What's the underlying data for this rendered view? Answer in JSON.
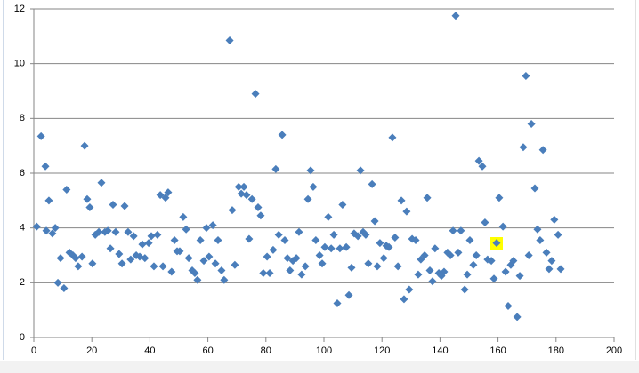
{
  "chart_data": {
    "type": "scatter",
    "color": "#4a7ebb",
    "grid": true,
    "xlim": [
      0,
      200
    ],
    "ylim": [
      0,
      12
    ],
    "xticks": [
      0,
      20,
      40,
      60,
      80,
      100,
      120,
      140,
      160,
      180,
      200
    ],
    "yticks": [
      0,
      2,
      4,
      6,
      8,
      10,
      12
    ],
    "x": [
      1,
      2.5,
      4,
      4.3,
      5.2,
      6.4,
      7.4,
      8.3,
      9.2,
      10.4,
      11.3,
      12.3,
      13.5,
      14.4,
      15.3,
      16.6,
      17.5,
      18.4,
      19.3,
      20.2,
      21.2,
      22.4,
      23.3,
      24.5,
      25.5,
      26.4,
      27.3,
      28.2,
      29.4,
      30.4,
      31.3,
      32.5,
      33.4,
      34.4,
      35.3,
      36.5,
      37.4,
      38.3,
      39.6,
      40.5,
      41.4,
      42.6,
      43.6,
      44.5,
      45.4,
      46.3,
      47.5,
      48.5,
      49.4,
      50.3,
      51.5,
      52.5,
      53.4,
      54.6,
      55.5,
      56.4,
      57.4,
      58.6,
      59.5,
      60.4,
      61.7,
      62.6,
      63.5,
      64.7,
      65.6,
      67.5,
      68.4,
      69.3,
      70.6,
      71.5,
      72.4,
      73.3,
      74.2,
      75.2,
      76.4,
      77.3,
      78.2,
      79.1,
      80.4,
      81.3,
      82.5,
      83.4,
      84.4,
      85.6,
      86.5,
      87.4,
      88.3,
      89.3,
      90.5,
      91.4,
      92.3,
      93.6,
      94.5,
      95.4,
      96.3,
      97.2,
      98.5,
      99.4,
      100.3,
      101.5,
      102.5,
      103.4,
      104.6,
      105.5,
      106.4,
      107.7,
      108.6,
      109.5,
      110.4,
      111.7,
      112.6,
      113.5,
      114.4,
      115.3,
      116.6,
      117.5,
      118.4,
      119.3,
      120.6,
      121.5,
      122.4,
      123.6,
      124.5,
      125.5,
      126.7,
      127.6,
      128.5,
      129.4,
      130.4,
      131.6,
      132.5,
      133.4,
      134.7,
      135.6,
      136.5,
      137.4,
      138.3,
      139.6,
      140.5,
      141.4,
      142.6,
      143.6,
      144.5,
      145.4,
      146.3,
      147.2,
      148.5,
      149.4,
      150.3,
      151.5,
      152.5,
      153.4,
      154.6,
      155.5,
      156.4,
      157.7,
      158.6,
      159.5,
      160.4,
      161.7,
      162.6,
      163.5,
      164.4,
      165.3,
      166.6,
      167.5,
      168.7,
      169.6,
      170.6,
      171.5,
      172.7,
      173.6,
      174.5,
      175.5,
      176.7,
      177.6,
      178.5,
      179.4,
      180.7,
      181.6
    ],
    "values": [
      4.05,
      7.35,
      6.25,
      3.9,
      5.0,
      3.8,
      4.0,
      2.0,
      2.9,
      1.8,
      5.4,
      3.1,
      3.0,
      2.9,
      2.6,
      2.95,
      7.0,
      5.05,
      4.75,
      2.7,
      3.75,
      3.85,
      5.65,
      3.85,
      3.9,
      3.25,
      4.85,
      3.85,
      3.05,
      2.7,
      4.8,
      3.85,
      2.85,
      3.7,
      3.0,
      2.95,
      3.4,
      2.9,
      3.45,
      3.7,
      2.6,
      3.75,
      5.2,
      2.6,
      5.1,
      5.3,
      2.4,
      3.55,
      3.15,
      3.15,
      4.4,
      3.95,
      2.9,
      2.45,
      2.35,
      2.1,
      3.55,
      2.8,
      4.0,
      2.95,
      4.1,
      2.7,
      3.55,
      2.45,
      2.1,
      10.85,
      4.65,
      2.65,
      5.5,
      5.25,
      5.5,
      5.2,
      3.6,
      5.05,
      8.9,
      4.75,
      4.45,
      2.35,
      2.95,
      2.35,
      3.2,
      6.15,
      3.75,
      7.4,
      3.55,
      2.9,
      2.45,
      2.8,
      2.9,
      3.85,
      2.3,
      2.6,
      5.05,
      6.1,
      5.5,
      3.55,
      3.0,
      2.7,
      3.3,
      4.4,
      3.25,
      3.75,
      1.25,
      3.25,
      4.85,
      3.3,
      1.55,
      2.55,
      3.8,
      3.7,
      6.1,
      3.85,
      3.75,
      2.7,
      5.6,
      4.25,
      2.6,
      3.45,
      2.9,
      3.35,
      3.3,
      7.3,
      3.65,
      2.6,
      5.0,
      1.4,
      4.6,
      1.75,
      3.6,
      3.55,
      2.3,
      2.85,
      3.0,
      5.1,
      2.45,
      2.05,
      3.25,
      2.35,
      2.25,
      2.4,
      3.1,
      3.0,
      3.9,
      11.75,
      3.1,
      3.9,
      1.75,
      2.3,
      3.55,
      2.65,
      3.0,
      6.45,
      6.25,
      4.2,
      2.85,
      2.8,
      2.15,
      3.45,
      5.1,
      4.05,
      2.4,
      1.15,
      2.65,
      2.8,
      0.75,
      2.25,
      6.95,
      9.55,
      3.0,
      7.8,
      5.45,
      3.95,
      3.55,
      6.85,
      3.1,
      2.5,
      2.8,
      4.3,
      3.75,
      2.5
    ]
  }
}
